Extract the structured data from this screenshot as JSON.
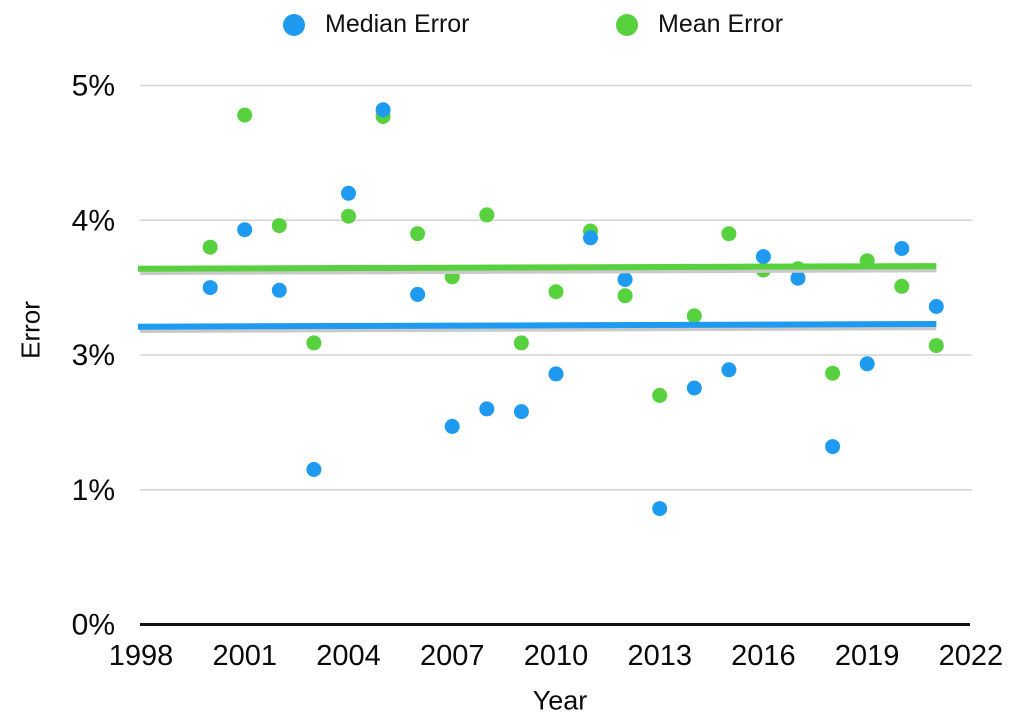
{
  "legend": {
    "items": [
      {
        "label": "Median Error",
        "color": "#1e9bf0"
      },
      {
        "label": "Mean Error",
        "color": "#58d13f"
      }
    ]
  },
  "axes": {
    "y_title": "Error",
    "x_title": "Year"
  },
  "chart_data": {
    "type": "scatter",
    "title": "",
    "xlabel": "Year",
    "ylabel": "Error",
    "legend_position": "top",
    "grid": "horizontal",
    "x_range": [
      1998,
      2022
    ],
    "y_axis_note": "gridlines equally spaced; tick labels read 0%,1%,3%,4%,5% bottom-to-top (2% label skipped)",
    "y_axis": {
      "ticks": [
        {
          "label": "5%",
          "value": 5
        },
        {
          "label": "4%",
          "value": 4
        },
        {
          "label": "3%",
          "value": 3
        },
        {
          "label": "1%",
          "value": 1
        },
        {
          "label": "0%",
          "value": 0
        }
      ]
    },
    "x_axis": {
      "ticks": [
        {
          "label": "1998",
          "value": 1998
        },
        {
          "label": "2001",
          "value": 2001
        },
        {
          "label": "2004",
          "value": 2004
        },
        {
          "label": "2007",
          "value": 2007
        },
        {
          "label": "2010",
          "value": 2010
        },
        {
          "label": "2013",
          "value": 2013
        },
        {
          "label": "2016",
          "value": 2016
        },
        {
          "label": "2019",
          "value": 2019
        },
        {
          "label": "2022",
          "value": 2022
        }
      ]
    },
    "series": [
      {
        "name": "Median Error",
        "color": "#1e9bf0",
        "points": [
          [
            2000,
            3.5
          ],
          [
            2001,
            3.93
          ],
          [
            2002,
            3.48
          ],
          [
            2003,
            1.3
          ],
          [
            2004,
            4.2
          ],
          [
            2005,
            4.82
          ],
          [
            2006,
            3.45
          ],
          [
            2007,
            1.94
          ],
          [
            2008,
            2.2
          ],
          [
            2009,
            2.16
          ],
          [
            2010,
            2.72
          ],
          [
            2011,
            3.87
          ],
          [
            2012,
            3.56
          ],
          [
            2013,
            0.86
          ],
          [
            2014,
            2.51
          ],
          [
            2015,
            2.78
          ],
          [
            2016,
            3.73
          ],
          [
            2017,
            3.57
          ],
          [
            2018,
            1.64
          ],
          [
            2019,
            2.87
          ],
          [
            2020,
            3.79
          ],
          [
            2021,
            3.36
          ]
        ]
      },
      {
        "name": "Mean Error",
        "color": "#58d13f",
        "points": [
          [
            2000,
            3.8
          ],
          [
            2001,
            4.78
          ],
          [
            2002,
            3.96
          ],
          [
            2003,
            3.09
          ],
          [
            2004,
            4.03
          ],
          [
            2005,
            4.77
          ],
          [
            2006,
            3.9
          ],
          [
            2007,
            3.58
          ],
          [
            2008,
            4.04
          ],
          [
            2009,
            3.09
          ],
          [
            2010,
            3.47
          ],
          [
            2011,
            3.92
          ],
          [
            2012,
            3.44
          ],
          [
            2013,
            2.4
          ],
          [
            2014,
            3.29
          ],
          [
            2015,
            3.9
          ],
          [
            2016,
            3.63
          ],
          [
            2017,
            3.64
          ],
          [
            2018,
            2.73
          ],
          [
            2019,
            3.7
          ],
          [
            2020,
            3.51
          ],
          [
            2021,
            3.07
          ]
        ]
      }
    ],
    "trend_lines": [
      {
        "name": "mean-error-trend",
        "color": "#58d13f",
        "x": [
          1998,
          2021
        ],
        "y": [
          3.64,
          3.66
        ]
      },
      {
        "name": "median-error-trend",
        "color": "#1e9bf0",
        "x": [
          1998,
          2021
        ],
        "y": [
          3.21,
          3.23
        ]
      }
    ]
  }
}
